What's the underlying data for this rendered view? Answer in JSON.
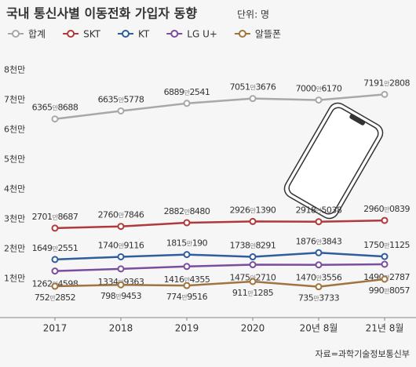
{
  "chart_data": {
    "type": "line",
    "title": "국내 통신사별 이동전화 가입자 동향",
    "subtitle": "단위: 명",
    "source": "자료=과학기술정보통신부",
    "categories": [
      "2017",
      "2018",
      "2019",
      "2020",
      "20년 8월",
      "21년 8월"
    ],
    "ylim": [
      -3000000,
      82000000
    ],
    "yticks": [
      {
        "value": 10000000,
        "label": "1천만"
      },
      {
        "value": 20000000,
        "label": "2천만"
      },
      {
        "value": 30000000,
        "label": "3천만"
      },
      {
        "value": 40000000,
        "label": "4천만"
      },
      {
        "value": 50000000,
        "label": "5천만"
      },
      {
        "value": 60000000,
        "label": "6천만"
      },
      {
        "value": 70000000,
        "label": "7천만"
      },
      {
        "value": 80000000,
        "label": "8천만"
      }
    ],
    "grid": false,
    "series": [
      {
        "name": "합계",
        "color": "#a8a8a8",
        "values": [
          63658688,
          66355778,
          68892541,
          70513676,
          70006170,
          71912808
        ],
        "value_labels": [
          "6365만8688",
          "6635만5778",
          "6889만2541",
          "7051만3676",
          "7000만6170",
          "7191만2808"
        ]
      },
      {
        "name": "SKT",
        "color": "#b0393b",
        "values": [
          27018687,
          27607846,
          28828480,
          29261390,
          29185038,
          29600839
        ],
        "value_labels": [
          "2701만8687",
          "2760만7846",
          "2882만8480",
          "2926만1390",
          "2918만5038",
          "2960만0839"
        ]
      },
      {
        "name": "KT",
        "color": "#2f5d9e",
        "values": [
          16492551,
          17409116,
          18150190,
          17388291,
          18763843,
          17501125
        ],
        "value_labels": [
          "1649만2551",
          "1740만9116",
          "1815만190",
          "1738만8291",
          "1876만3843",
          "1750만1125"
        ]
      },
      {
        "name": "LG U+",
        "color": "#7a4d9e",
        "values": [
          12624598,
          13349363,
          14164355,
          14752710,
          14703556,
          14902787
        ],
        "value_labels": [
          "1262만4598",
          "1334만9363",
          "1416만4355",
          "1475만2710",
          "1470만3556",
          "1490만2787"
        ]
      },
      {
        "name": "알뜰폰",
        "color": "#a0743f",
        "values": [
          7522852,
          7989453,
          7749516,
          9111285,
          7353733,
          9908057
        ],
        "value_labels": [
          "752만2852",
          "798만9453",
          "774만9516",
          "911만1285",
          "735만3733",
          "990만8057"
        ]
      }
    ]
  }
}
